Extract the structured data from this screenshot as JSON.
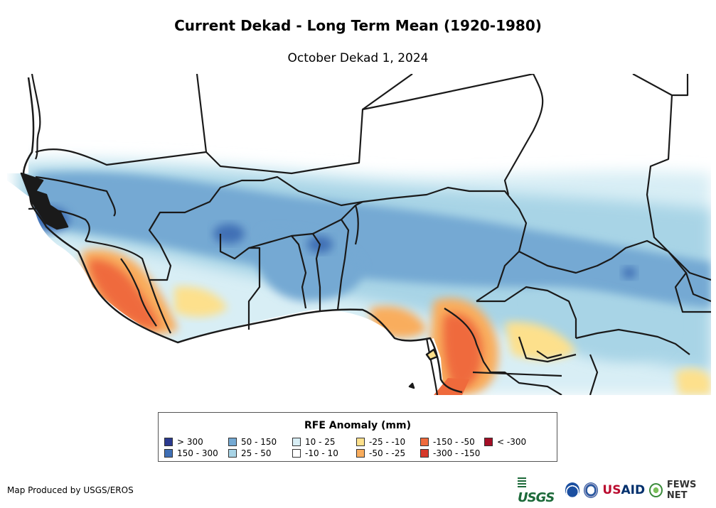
{
  "header": {
    "title": "Current Dekad - Long Term Mean (1920-1980)",
    "subtitle": "October Dekad 1, 2024"
  },
  "legend": {
    "title": "RFE Anomaly (mm)",
    "items": [
      {
        "label": "> 300",
        "color": "#2b3a8f"
      },
      {
        "label": "150 - 300",
        "color": "#3f6fb5"
      },
      {
        "label": "50 - 150",
        "color": "#74a9d3"
      },
      {
        "label": "25 - 50",
        "color": "#a8d4e6"
      },
      {
        "label": "10 - 25",
        "color": "#d8eef5"
      },
      {
        "label": "-10 - 10",
        "color": "#ffffff"
      },
      {
        "label": "-25 - -10",
        "color": "#fde08c"
      },
      {
        "label": "-50 - -25",
        "color": "#f9ad5d"
      },
      {
        "label": "-150 - -50",
        "color": "#ef6a3c"
      },
      {
        "label": "-300 - -150",
        "color": "#d6392b"
      },
      {
        "label": "< -300",
        "color": "#a50f26"
      }
    ]
  },
  "footer": {
    "credit": "Map Produced by USGS/EROS",
    "logos": {
      "usgs": "USGS",
      "usaid_us": "US",
      "usaid_aid": "AID",
      "fews": "FEWS NET"
    }
  }
}
